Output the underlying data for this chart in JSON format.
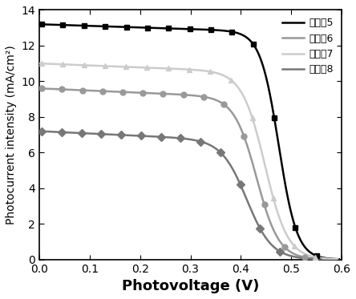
{
  "title": "",
  "xlabel": "Photovoltage (V)",
  "ylabel": "Photocurrent intensity (mA/cm²)",
  "xlim": [
    0,
    0.6
  ],
  "ylim": [
    0,
    14
  ],
  "xticks": [
    0,
    0.1,
    0.2,
    0.3,
    0.4,
    0.5,
    0.6
  ],
  "yticks": [
    0,
    2,
    4,
    6,
    8,
    10,
    12,
    14
  ],
  "series": [
    {
      "label": "实施兦5",
      "color": "#000000",
      "marker": "s",
      "isc": 13.2,
      "voc": 0.49,
      "steep": 55.0,
      "slope": 0.9
    },
    {
      "label": "实施兦6",
      "color": "#999999",
      "marker": "o",
      "isc": 9.6,
      "voc": 0.445,
      "steep": 45.0,
      "slope": 1.2
    },
    {
      "label": "实施兦7",
      "color": "#cccccc",
      "marker": "^",
      "isc": 11.0,
      "voc": 0.462,
      "steep": 44.0,
      "slope": 1.1
    },
    {
      "label": "实施兦8",
      "color": "#777777",
      "marker": "D",
      "isc": 7.2,
      "voc": 0.425,
      "steep": 40.0,
      "slope": 1.3
    }
  ],
  "figsize": [
    4.44,
    3.73
  ],
  "dpi": 100,
  "background_color": "#ffffff",
  "xlabel_fontsize": 13,
  "ylabel_fontsize": 10,
  "tick_fontsize": 10,
  "legend_fontsize": 9,
  "linewidth": 1.8,
  "markersize": 5,
  "n_markers": 15
}
